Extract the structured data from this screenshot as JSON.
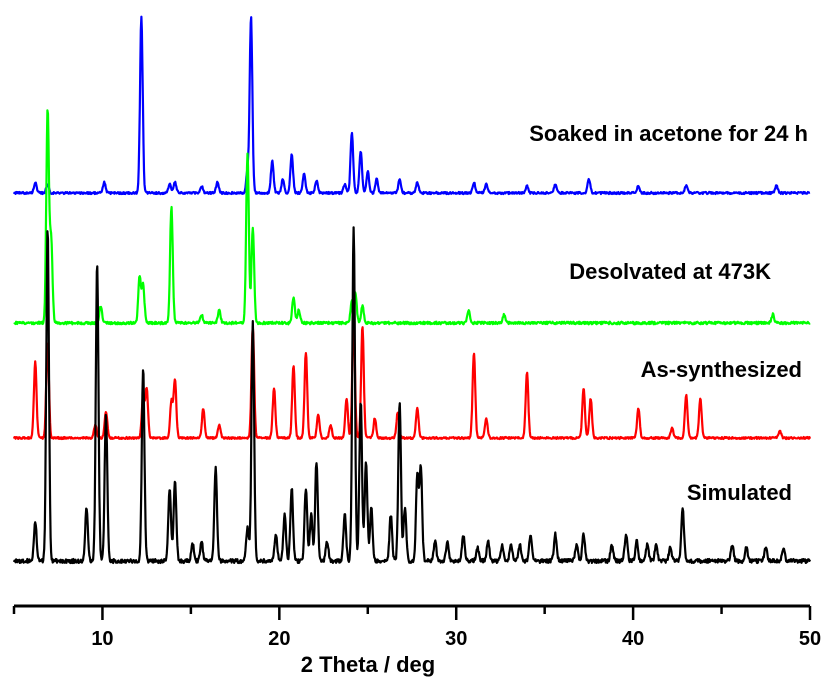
{
  "chart_data": {
    "type": "line",
    "title": "",
    "xlabel": "2 Theta / deg",
    "ylabel": "",
    "xlim": [
      5,
      50
    ],
    "x_ticks": [
      "10",
      "20",
      "30",
      "40",
      "50"
    ],
    "y_axis_shown": false,
    "grid": false,
    "legend": "none (series labelled directly above each trace)",
    "series": [
      {
        "name": "Soaked in acetone for 24 h",
        "color": "#0000ff",
        "baseline": 0.24,
        "peaks": [
          [
            6.2,
            0.06
          ],
          [
            6.9,
            0.05
          ],
          [
            10.1,
            0.06
          ],
          [
            12.2,
            1.0
          ],
          [
            13.8,
            0.05
          ],
          [
            14.1,
            0.06
          ],
          [
            15.6,
            0.04
          ],
          [
            16.5,
            0.06
          ],
          [
            18.2,
            0.12
          ],
          [
            18.4,
            1.0
          ],
          [
            19.6,
            0.18
          ],
          [
            20.2,
            0.08
          ],
          [
            20.7,
            0.22
          ],
          [
            21.4,
            0.11
          ],
          [
            22.1,
            0.07
          ],
          [
            23.7,
            0.05
          ],
          [
            24.1,
            0.34
          ],
          [
            24.6,
            0.24
          ],
          [
            25.0,
            0.12
          ],
          [
            25.5,
            0.08
          ],
          [
            26.8,
            0.08
          ],
          [
            27.8,
            0.06
          ],
          [
            31.0,
            0.06
          ],
          [
            31.7,
            0.05
          ],
          [
            34.0,
            0.04
          ],
          [
            35.6,
            0.05
          ],
          [
            37.5,
            0.08
          ],
          [
            40.3,
            0.04
          ],
          [
            43.0,
            0.04
          ],
          [
            48.1,
            0.04
          ]
        ]
      },
      {
        "name": "Desolvated at 473K",
        "color": "#00ff00",
        "baseline": 0.25,
        "peaks": [
          [
            6.9,
            1.0
          ],
          [
            7.1,
            0.4
          ],
          [
            9.9,
            0.08
          ],
          [
            12.1,
            0.22
          ],
          [
            12.3,
            0.18
          ],
          [
            13.9,
            0.55
          ],
          [
            15.6,
            0.04
          ],
          [
            16.6,
            0.06
          ],
          [
            18.2,
            0.8
          ],
          [
            18.5,
            0.45
          ],
          [
            20.8,
            0.12
          ],
          [
            21.1,
            0.06
          ],
          [
            24.1,
            0.1
          ],
          [
            24.3,
            0.14
          ],
          [
            24.7,
            0.08
          ],
          [
            30.7,
            0.06
          ],
          [
            32.7,
            0.04
          ],
          [
            47.9,
            0.04
          ]
        ]
      },
      {
        "name": "As-synthesized",
        "color": "#ff0000",
        "baseline": 0.26,
        "peaks": [
          [
            6.2,
            0.46
          ],
          [
            6.9,
            0.58
          ],
          [
            9.6,
            0.08
          ],
          [
            10.2,
            0.16
          ],
          [
            12.3,
            0.26
          ],
          [
            12.5,
            0.3
          ],
          [
            13.9,
            0.22
          ],
          [
            14.1,
            0.35
          ],
          [
            15.7,
            0.18
          ],
          [
            16.6,
            0.08
          ],
          [
            18.5,
            0.68
          ],
          [
            19.7,
            0.3
          ],
          [
            20.8,
            0.44
          ],
          [
            21.5,
            0.52
          ],
          [
            22.2,
            0.14
          ],
          [
            22.9,
            0.08
          ],
          [
            23.8,
            0.24
          ],
          [
            24.2,
            0.72
          ],
          [
            24.7,
            0.68
          ],
          [
            25.4,
            0.12
          ],
          [
            26.7,
            0.16
          ],
          [
            27.8,
            0.18
          ],
          [
            31.0,
            0.52
          ],
          [
            31.7,
            0.12
          ],
          [
            34.0,
            0.4
          ],
          [
            37.2,
            0.3
          ],
          [
            37.6,
            0.24
          ],
          [
            40.3,
            0.18
          ],
          [
            42.2,
            0.06
          ],
          [
            43.0,
            0.26
          ],
          [
            43.8,
            0.24
          ],
          [
            48.3,
            0.04
          ]
        ]
      },
      {
        "name": "Simulated",
        "color": "#000000",
        "baseline": 0.26,
        "peaks": [
          [
            6.2,
            0.12
          ],
          [
            6.9,
            1.0
          ],
          [
            9.1,
            0.16
          ],
          [
            9.7,
            0.9
          ],
          [
            10.2,
            0.44
          ],
          [
            12.3,
            0.58
          ],
          [
            13.8,
            0.22
          ],
          [
            14.1,
            0.24
          ],
          [
            15.1,
            0.05
          ],
          [
            15.6,
            0.06
          ],
          [
            16.4,
            0.28
          ],
          [
            18.2,
            0.1
          ],
          [
            18.5,
            0.72
          ],
          [
            19.8,
            0.08
          ],
          [
            20.3,
            0.14
          ],
          [
            20.7,
            0.22
          ],
          [
            21.5,
            0.22
          ],
          [
            21.8,
            0.14
          ],
          [
            22.1,
            0.3
          ],
          [
            22.7,
            0.06
          ],
          [
            23.7,
            0.14
          ],
          [
            24.2,
            1.0
          ],
          [
            24.6,
            0.48
          ],
          [
            24.9,
            0.3
          ],
          [
            25.2,
            0.16
          ],
          [
            26.3,
            0.14
          ],
          [
            26.8,
            0.48
          ],
          [
            27.1,
            0.16
          ],
          [
            27.8,
            0.26
          ],
          [
            28.0,
            0.28
          ],
          [
            28.8,
            0.06
          ],
          [
            29.5,
            0.06
          ],
          [
            30.4,
            0.08
          ],
          [
            31.2,
            0.04
          ],
          [
            31.8,
            0.06
          ],
          [
            32.6,
            0.05
          ],
          [
            33.1,
            0.05
          ],
          [
            33.6,
            0.05
          ],
          [
            34.2,
            0.08
          ],
          [
            35.6,
            0.08
          ],
          [
            36.8,
            0.05
          ],
          [
            37.2,
            0.08
          ],
          [
            38.8,
            0.05
          ],
          [
            39.6,
            0.08
          ],
          [
            40.2,
            0.06
          ],
          [
            40.8,
            0.05
          ],
          [
            41.3,
            0.05
          ],
          [
            42.1,
            0.04
          ],
          [
            42.8,
            0.16
          ],
          [
            45.6,
            0.05
          ],
          [
            46.4,
            0.04
          ],
          [
            47.5,
            0.04
          ],
          [
            48.5,
            0.04
          ]
        ]
      }
    ]
  }
}
